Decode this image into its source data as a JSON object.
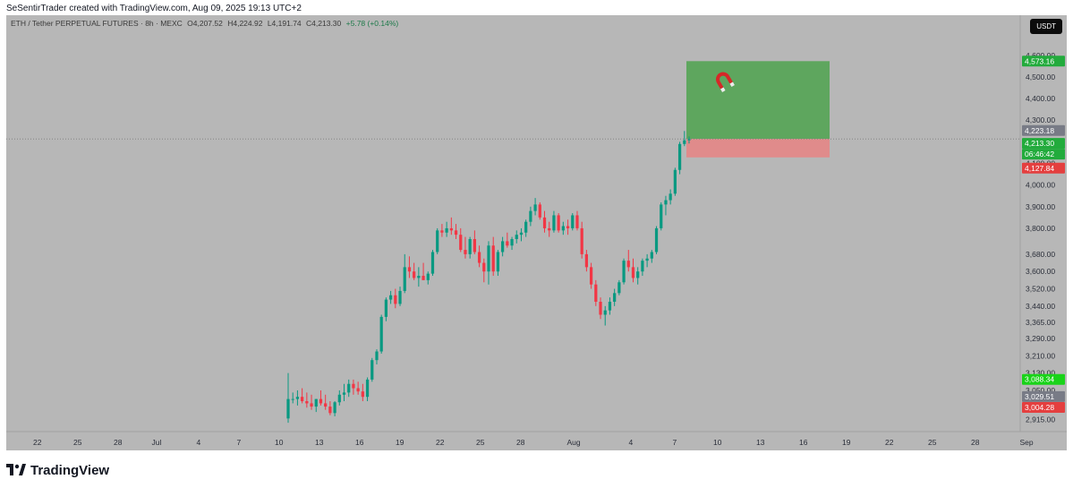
{
  "header": {
    "credit": "SeSentirTrader created with TradingView.com, Aug 09, 2025 19:13 UTC+2"
  },
  "symbol": {
    "name": "ETH / Tether PERPETUAL FUTURES · 8h · MEXC",
    "open": "O4,207.52",
    "high": "H4,224.92",
    "low": "L4,191.74",
    "close": "C4,213.30",
    "change": "+5.78 (+0.14%)"
  },
  "currency_button": "USDT",
  "price_axis": {
    "ticks": [
      "4,600.00",
      "4,500.00",
      "4,400.00",
      "4,300.00",
      "4,100.00",
      "4,000.00",
      "3,900.00",
      "3,800.00",
      "3,680.00",
      "3,600.00",
      "3,520.00",
      "3,440.00",
      "3,365.00",
      "3,290.00",
      "3,210.00",
      "3,130.00",
      "3,050.00",
      "2,915.00"
    ],
    "badges": {
      "target": "4,573.16",
      "prev": "4,223.18",
      "last": "4,213.30",
      "countdown": "06:46:42",
      "stop": "4,127.84",
      "b1": "3,088.34",
      "b2": "3,029.51",
      "b3": "3,004.28"
    }
  },
  "time_axis": {
    "ticks": [
      "22",
      "25",
      "28",
      "Jul",
      "4",
      "7",
      "10",
      "13",
      "16",
      "19",
      "22",
      "25",
      "28",
      "Aug",
      "4",
      "7",
      "10",
      "13",
      "16",
      "19",
      "22",
      "25",
      "28",
      "Sep"
    ]
  },
  "position": {
    "entry": 4213.3,
    "target": 4573.16,
    "stop": 4127.84,
    "icon": "magnet-icon"
  },
  "colors": {
    "background": "#b7b7b7",
    "up": "#089981",
    "down": "#f23645",
    "profit_zone": "#5ea65e",
    "loss_zone": "#e08b8b",
    "green_badge": "#22ab3c",
    "red_badge": "#e43f3f",
    "gray_badge": "#787b86"
  },
  "chart_data": {
    "type": "candlestick",
    "interval": "8h",
    "ylim": [
      2880,
      4620
    ],
    "series": [
      {
        "o": 2920,
        "h": 3130,
        "l": 2900,
        "c": 3010
      },
      {
        "o": 3010,
        "h": 3040,
        "l": 2990,
        "c": 3010
      },
      {
        "o": 3010,
        "h": 3050,
        "l": 2980,
        "c": 3020
      },
      {
        "o": 3020,
        "h": 3060,
        "l": 2990,
        "c": 3000
      },
      {
        "o": 3000,
        "h": 3040,
        "l": 2970,
        "c": 2990
      },
      {
        "o": 2990,
        "h": 3030,
        "l": 2960,
        "c": 2975
      },
      {
        "o": 2975,
        "h": 3010,
        "l": 2950,
        "c": 3010
      },
      {
        "o": 3010,
        "h": 3050,
        "l": 2980,
        "c": 2990
      },
      {
        "o": 2990,
        "h": 3030,
        "l": 2960,
        "c": 2975
      },
      {
        "o": 2975,
        "h": 3000,
        "l": 2935,
        "c": 2945
      },
      {
        "o": 2945,
        "h": 3000,
        "l": 2930,
        "c": 2995
      },
      {
        "o": 2995,
        "h": 3050,
        "l": 2980,
        "c": 3030
      },
      {
        "o": 3030,
        "h": 3080,
        "l": 3000,
        "c": 3040
      },
      {
        "o": 3040,
        "h": 3100,
        "l": 3020,
        "c": 3080
      },
      {
        "o": 3080,
        "h": 3100,
        "l": 3030,
        "c": 3060
      },
      {
        "o": 3060,
        "h": 3090,
        "l": 3030,
        "c": 3045
      },
      {
        "o": 3045,
        "h": 3080,
        "l": 3000,
        "c": 3020
      },
      {
        "o": 3020,
        "h": 3110,
        "l": 3000,
        "c": 3100
      },
      {
        "o": 3100,
        "h": 3200,
        "l": 3090,
        "c": 3190
      },
      {
        "o": 3190,
        "h": 3240,
        "l": 3170,
        "c": 3230
      },
      {
        "o": 3230,
        "h": 3400,
        "l": 3220,
        "c": 3390
      },
      {
        "o": 3390,
        "h": 3480,
        "l": 3370,
        "c": 3470
      },
      {
        "o": 3470,
        "h": 3510,
        "l": 3450,
        "c": 3490
      },
      {
        "o": 3490,
        "h": 3520,
        "l": 3430,
        "c": 3450
      },
      {
        "o": 3450,
        "h": 3530,
        "l": 3440,
        "c": 3510
      },
      {
        "o": 3510,
        "h": 3680,
        "l": 3500,
        "c": 3620
      },
      {
        "o": 3620,
        "h": 3670,
        "l": 3570,
        "c": 3600
      },
      {
        "o": 3600,
        "h": 3640,
        "l": 3560,
        "c": 3570
      },
      {
        "o": 3570,
        "h": 3620,
        "l": 3530,
        "c": 3580
      },
      {
        "o": 3580,
        "h": 3640,
        "l": 3560,
        "c": 3560
      },
      {
        "o": 3560,
        "h": 3600,
        "l": 3540,
        "c": 3590
      },
      {
        "o": 3590,
        "h": 3700,
        "l": 3580,
        "c": 3690
      },
      {
        "o": 3690,
        "h": 3800,
        "l": 3680,
        "c": 3790
      },
      {
        "o": 3790,
        "h": 3820,
        "l": 3760,
        "c": 3780
      },
      {
        "o": 3780,
        "h": 3830,
        "l": 3760,
        "c": 3800
      },
      {
        "o": 3800,
        "h": 3850,
        "l": 3770,
        "c": 3790
      },
      {
        "o": 3790,
        "h": 3820,
        "l": 3750,
        "c": 3770
      },
      {
        "o": 3770,
        "h": 3800,
        "l": 3690,
        "c": 3700
      },
      {
        "o": 3700,
        "h": 3760,
        "l": 3660,
        "c": 3680
      },
      {
        "o": 3680,
        "h": 3760,
        "l": 3660,
        "c": 3750
      },
      {
        "o": 3750,
        "h": 3790,
        "l": 3680,
        "c": 3690
      },
      {
        "o": 3690,
        "h": 3720,
        "l": 3620,
        "c": 3640
      },
      {
        "o": 3640,
        "h": 3660,
        "l": 3550,
        "c": 3600
      },
      {
        "o": 3600,
        "h": 3740,
        "l": 3540,
        "c": 3720
      },
      {
        "o": 3720,
        "h": 3760,
        "l": 3580,
        "c": 3600
      },
      {
        "o": 3600,
        "h": 3700,
        "l": 3580,
        "c": 3690
      },
      {
        "o": 3690,
        "h": 3760,
        "l": 3670,
        "c": 3740
      },
      {
        "o": 3740,
        "h": 3780,
        "l": 3710,
        "c": 3720
      },
      {
        "o": 3720,
        "h": 3760,
        "l": 3700,
        "c": 3750
      },
      {
        "o": 3750,
        "h": 3790,
        "l": 3730,
        "c": 3770
      },
      {
        "o": 3770,
        "h": 3800,
        "l": 3740,
        "c": 3780
      },
      {
        "o": 3780,
        "h": 3840,
        "l": 3760,
        "c": 3830
      },
      {
        "o": 3830,
        "h": 3900,
        "l": 3810,
        "c": 3880
      },
      {
        "o": 3880,
        "h": 3940,
        "l": 3860,
        "c": 3910
      },
      {
        "o": 3910,
        "h": 3920,
        "l": 3840,
        "c": 3850
      },
      {
        "o": 3850,
        "h": 3880,
        "l": 3780,
        "c": 3800
      },
      {
        "o": 3800,
        "h": 3830,
        "l": 3760,
        "c": 3790
      },
      {
        "o": 3790,
        "h": 3880,
        "l": 3780,
        "c": 3860
      },
      {
        "o": 3860,
        "h": 3870,
        "l": 3780,
        "c": 3790
      },
      {
        "o": 3790,
        "h": 3830,
        "l": 3770,
        "c": 3810
      },
      {
        "o": 3810,
        "h": 3840,
        "l": 3770,
        "c": 3800
      },
      {
        "o": 3800,
        "h": 3870,
        "l": 3790,
        "c": 3860
      },
      {
        "o": 3860,
        "h": 3880,
        "l": 3790,
        "c": 3800
      },
      {
        "o": 3800,
        "h": 3830,
        "l": 3660,
        "c": 3680
      },
      {
        "o": 3680,
        "h": 3700,
        "l": 3600,
        "c": 3620
      },
      {
        "o": 3620,
        "h": 3640,
        "l": 3520,
        "c": 3540
      },
      {
        "o": 3540,
        "h": 3560,
        "l": 3440,
        "c": 3460
      },
      {
        "o": 3460,
        "h": 3480,
        "l": 3380,
        "c": 3400
      },
      {
        "o": 3400,
        "h": 3440,
        "l": 3350,
        "c": 3420
      },
      {
        "o": 3420,
        "h": 3480,
        "l": 3400,
        "c": 3460
      },
      {
        "o": 3460,
        "h": 3520,
        "l": 3440,
        "c": 3500
      },
      {
        "o": 3500,
        "h": 3560,
        "l": 3490,
        "c": 3550
      },
      {
        "o": 3550,
        "h": 3660,
        "l": 3540,
        "c": 3650
      },
      {
        "o": 3650,
        "h": 3700,
        "l": 3600,
        "c": 3620
      },
      {
        "o": 3620,
        "h": 3660,
        "l": 3550,
        "c": 3570
      },
      {
        "o": 3570,
        "h": 3620,
        "l": 3540,
        "c": 3600
      },
      {
        "o": 3600,
        "h": 3660,
        "l": 3580,
        "c": 3650
      },
      {
        "o": 3650,
        "h": 3680,
        "l": 3620,
        "c": 3660
      },
      {
        "o": 3660,
        "h": 3700,
        "l": 3640,
        "c": 3690
      },
      {
        "o": 3690,
        "h": 3810,
        "l": 3680,
        "c": 3800
      },
      {
        "o": 3800,
        "h": 3920,
        "l": 3790,
        "c": 3910
      },
      {
        "o": 3910,
        "h": 3950,
        "l": 3860,
        "c": 3930
      },
      {
        "o": 3930,
        "h": 3980,
        "l": 3910,
        "c": 3960
      },
      {
        "o": 3960,
        "h": 4080,
        "l": 3950,
        "c": 4070
      },
      {
        "o": 4070,
        "h": 4200,
        "l": 4050,
        "c": 4190
      },
      {
        "o": 4190,
        "h": 4250,
        "l": 4180,
        "c": 4207
      },
      {
        "o": 4207,
        "h": 4225,
        "l": 4192,
        "c": 4213
      }
    ]
  }
}
